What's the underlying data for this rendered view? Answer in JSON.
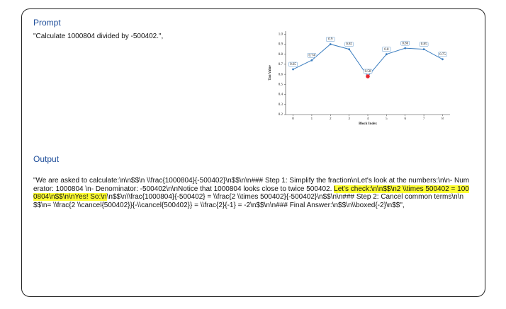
{
  "prompt": {
    "title": "Prompt",
    "text": "\"Calculate 1000804 divided by -500402.\","
  },
  "chart_data": {
    "type": "line",
    "xlabel": "Block Index",
    "ylabel": "Tan Value",
    "x": [
      0,
      1,
      2,
      3,
      4,
      5,
      6,
      7,
      8
    ],
    "series": [
      {
        "color": "#3b7dbf",
        "values": [
          0.65,
          0.74,
          0.9,
          0.85,
          0.58,
          0.8,
          0.86,
          0.85,
          0.75
        ]
      }
    ],
    "highlight_index": 4,
    "highlight_color": "#e8262e",
    "xlim": [
      -0.4,
      8.4
    ],
    "xticks": [
      0,
      1,
      2,
      3,
      4,
      5,
      6,
      7,
      8
    ],
    "ylim": [
      0.2,
      1.03
    ],
    "yticks": [
      0.2,
      0.3,
      0.4,
      0.5,
      0.6,
      0.7,
      0.8,
      0.9,
      {
        "value": 1,
        "label": "1.0"
      }
    ]
  },
  "output": {
    "title": "Output",
    "segments": [
      {
        "text": "\"We are asked to calculate:\\n\\n$$\\n \\\\frac{1000804}{-500402}\\n$$\\n\\n### Step 1: Simplify the fraction\\nLet's look at the numbers:\\n\\n- Numerator: 1000804  \\n- Denominator: -500402\\n\\nNotice that 1000804 looks close to twice 500402. ",
        "highlight": false
      },
      {
        "text": "Let's check:\\n\\n$$\\n2 \\\\times 500402 = 1000804\\n$$\\n\\nYes! So:\\n",
        "highlight": true
      },
      {
        "text": "\\n$$\\n\\\\frac{1000804}{-500402} = \\\\frac{2 \\\\times 500402}{-500402}\\n$$\\n\\n### Step 2: Cancel common terms\\n\\n$$\\n= \\\\frac{2 \\\\cancel{500402}}{-\\\\cancel{500402}} = \\\\frac{2}{-1} = -2\\n$$\\n\\n### Final Answer:\\n$$\\n\\\\boxed{-2}\\n$$\",",
        "highlight": false
      }
    ]
  }
}
